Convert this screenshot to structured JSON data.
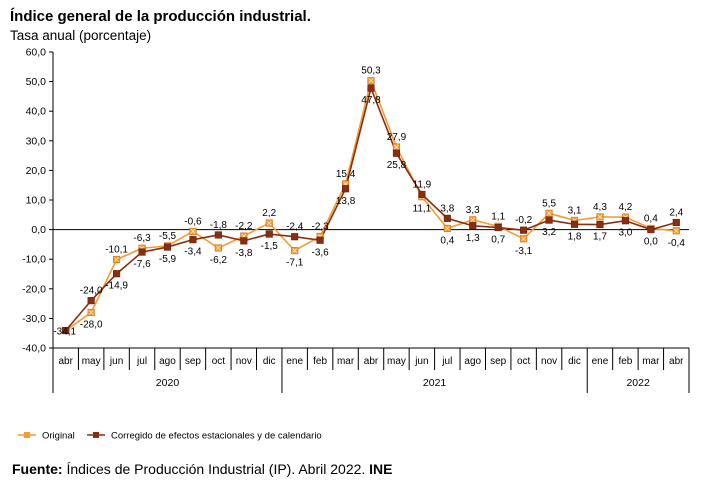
{
  "chart_data": {
    "type": "line",
    "title": "Índice general de la producción industrial.",
    "subtitle": "Tasa anual (porcentaje)",
    "categories": [
      "abr",
      "may",
      "jun",
      "jul",
      "ago",
      "sep",
      "oct",
      "nov",
      "dic",
      "ene",
      "feb",
      "mar",
      "abr",
      "may",
      "jun",
      "jul",
      "ago",
      "sep",
      "oct",
      "nov",
      "dic",
      "ene",
      "feb",
      "mar",
      "abr"
    ],
    "years": [
      {
        "label": "2020",
        "start": 0,
        "end": 8
      },
      {
        "label": "2021",
        "start": 9,
        "end": 20
      },
      {
        "label": "2022",
        "start": 21,
        "end": 24
      }
    ],
    "ylim": [
      -40,
      60
    ],
    "yticks": [
      "-40,0",
      "-30,0",
      "-20,0",
      "-10,0",
      "0,0",
      "10,0",
      "20,0",
      "30,0",
      "40,0",
      "50,0",
      "60,0"
    ],
    "series": [
      {
        "name": "Original",
        "color": "#F39C34",
        "values": [
          -34.1,
          -28.0,
          -10.1,
          -6.3,
          -5.5,
          -0.6,
          -6.2,
          -2.2,
          2.2,
          -7.1,
          -2.3,
          15.4,
          50.3,
          27.9,
          11.1,
          0.4,
          3.3,
          1.1,
          -3.1,
          5.5,
          3.1,
          4.3,
          4.2,
          0.4,
          -0.4
        ],
        "labels": [
          "-34,1",
          "-28,0",
          "-10,1",
          "-6,3",
          "-5,5",
          "-0,6",
          "-6,2",
          "-2,2",
          "2,2",
          "-7,1",
          "-2,3",
          "15,4",
          "50,3",
          "27,9",
          "11,1",
          "0,4",
          "3,3",
          "1,1",
          "-3,1",
          "5,5",
          "3,1",
          "4,3",
          "4,2",
          "0,4",
          "-0,4"
        ]
      },
      {
        "name": "Corregido de efectos estacionales y de calendario",
        "color": "#8B2E0F",
        "values": [
          -34.1,
          -24.0,
          -14.9,
          -7.6,
          -5.9,
          -3.4,
          -1.8,
          -3.8,
          -1.5,
          -2.4,
          -3.6,
          13.8,
          47.8,
          25.8,
          11.9,
          3.8,
          1.3,
          0.7,
          -0.2,
          3.2,
          1.8,
          1.7,
          3.0,
          0.0,
          2.4
        ],
        "labels": [
          "-34,1",
          "-24,0",
          "-14,9",
          "-7,6",
          "-5,9",
          "-3,4",
          "-1,8",
          "-3,8",
          "-1,5",
          "-2,4",
          "-3,6",
          "13,8",
          "47,8",
          "25,8",
          "11,9",
          "3,8",
          "1,3",
          "0,7",
          "-0,2",
          "3,2",
          "1,8",
          "1,7",
          "3,0",
          "0,0",
          "2,4"
        ]
      }
    ],
    "grid": false,
    "legend": "bottom-left"
  },
  "source": {
    "prefix": "Fuente:",
    "text": " Índices de Producción Industrial (IP).  Abril 2022. ",
    "org": "INE"
  }
}
